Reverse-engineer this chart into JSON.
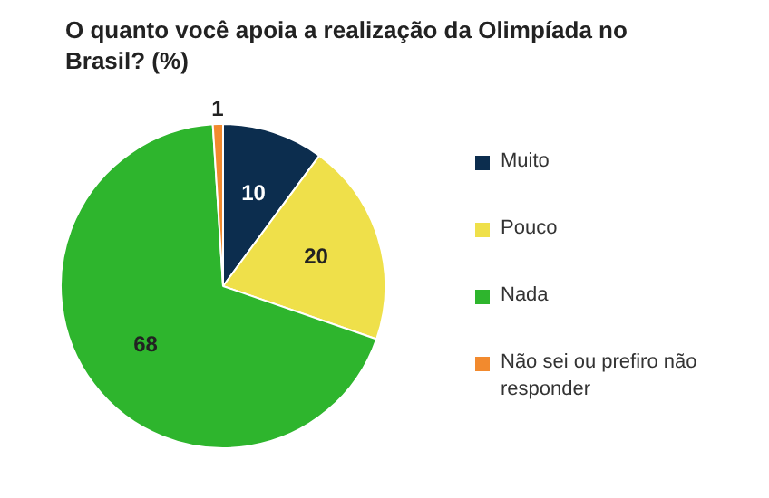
{
  "chart_data": {
    "type": "pie",
    "title": "O quanto você apoia a realização da Olimpíada no Brasil? (%)",
    "categories": [
      "Muito",
      "Pouco",
      "Nada",
      "Não sei ou prefiro não responder"
    ],
    "values": [
      10,
      20,
      68,
      1
    ],
    "colors": [
      "#0c2d4e",
      "#efe04a",
      "#2eb52d",
      "#f28a2e"
    ],
    "data_labels": true,
    "legend": "right"
  }
}
